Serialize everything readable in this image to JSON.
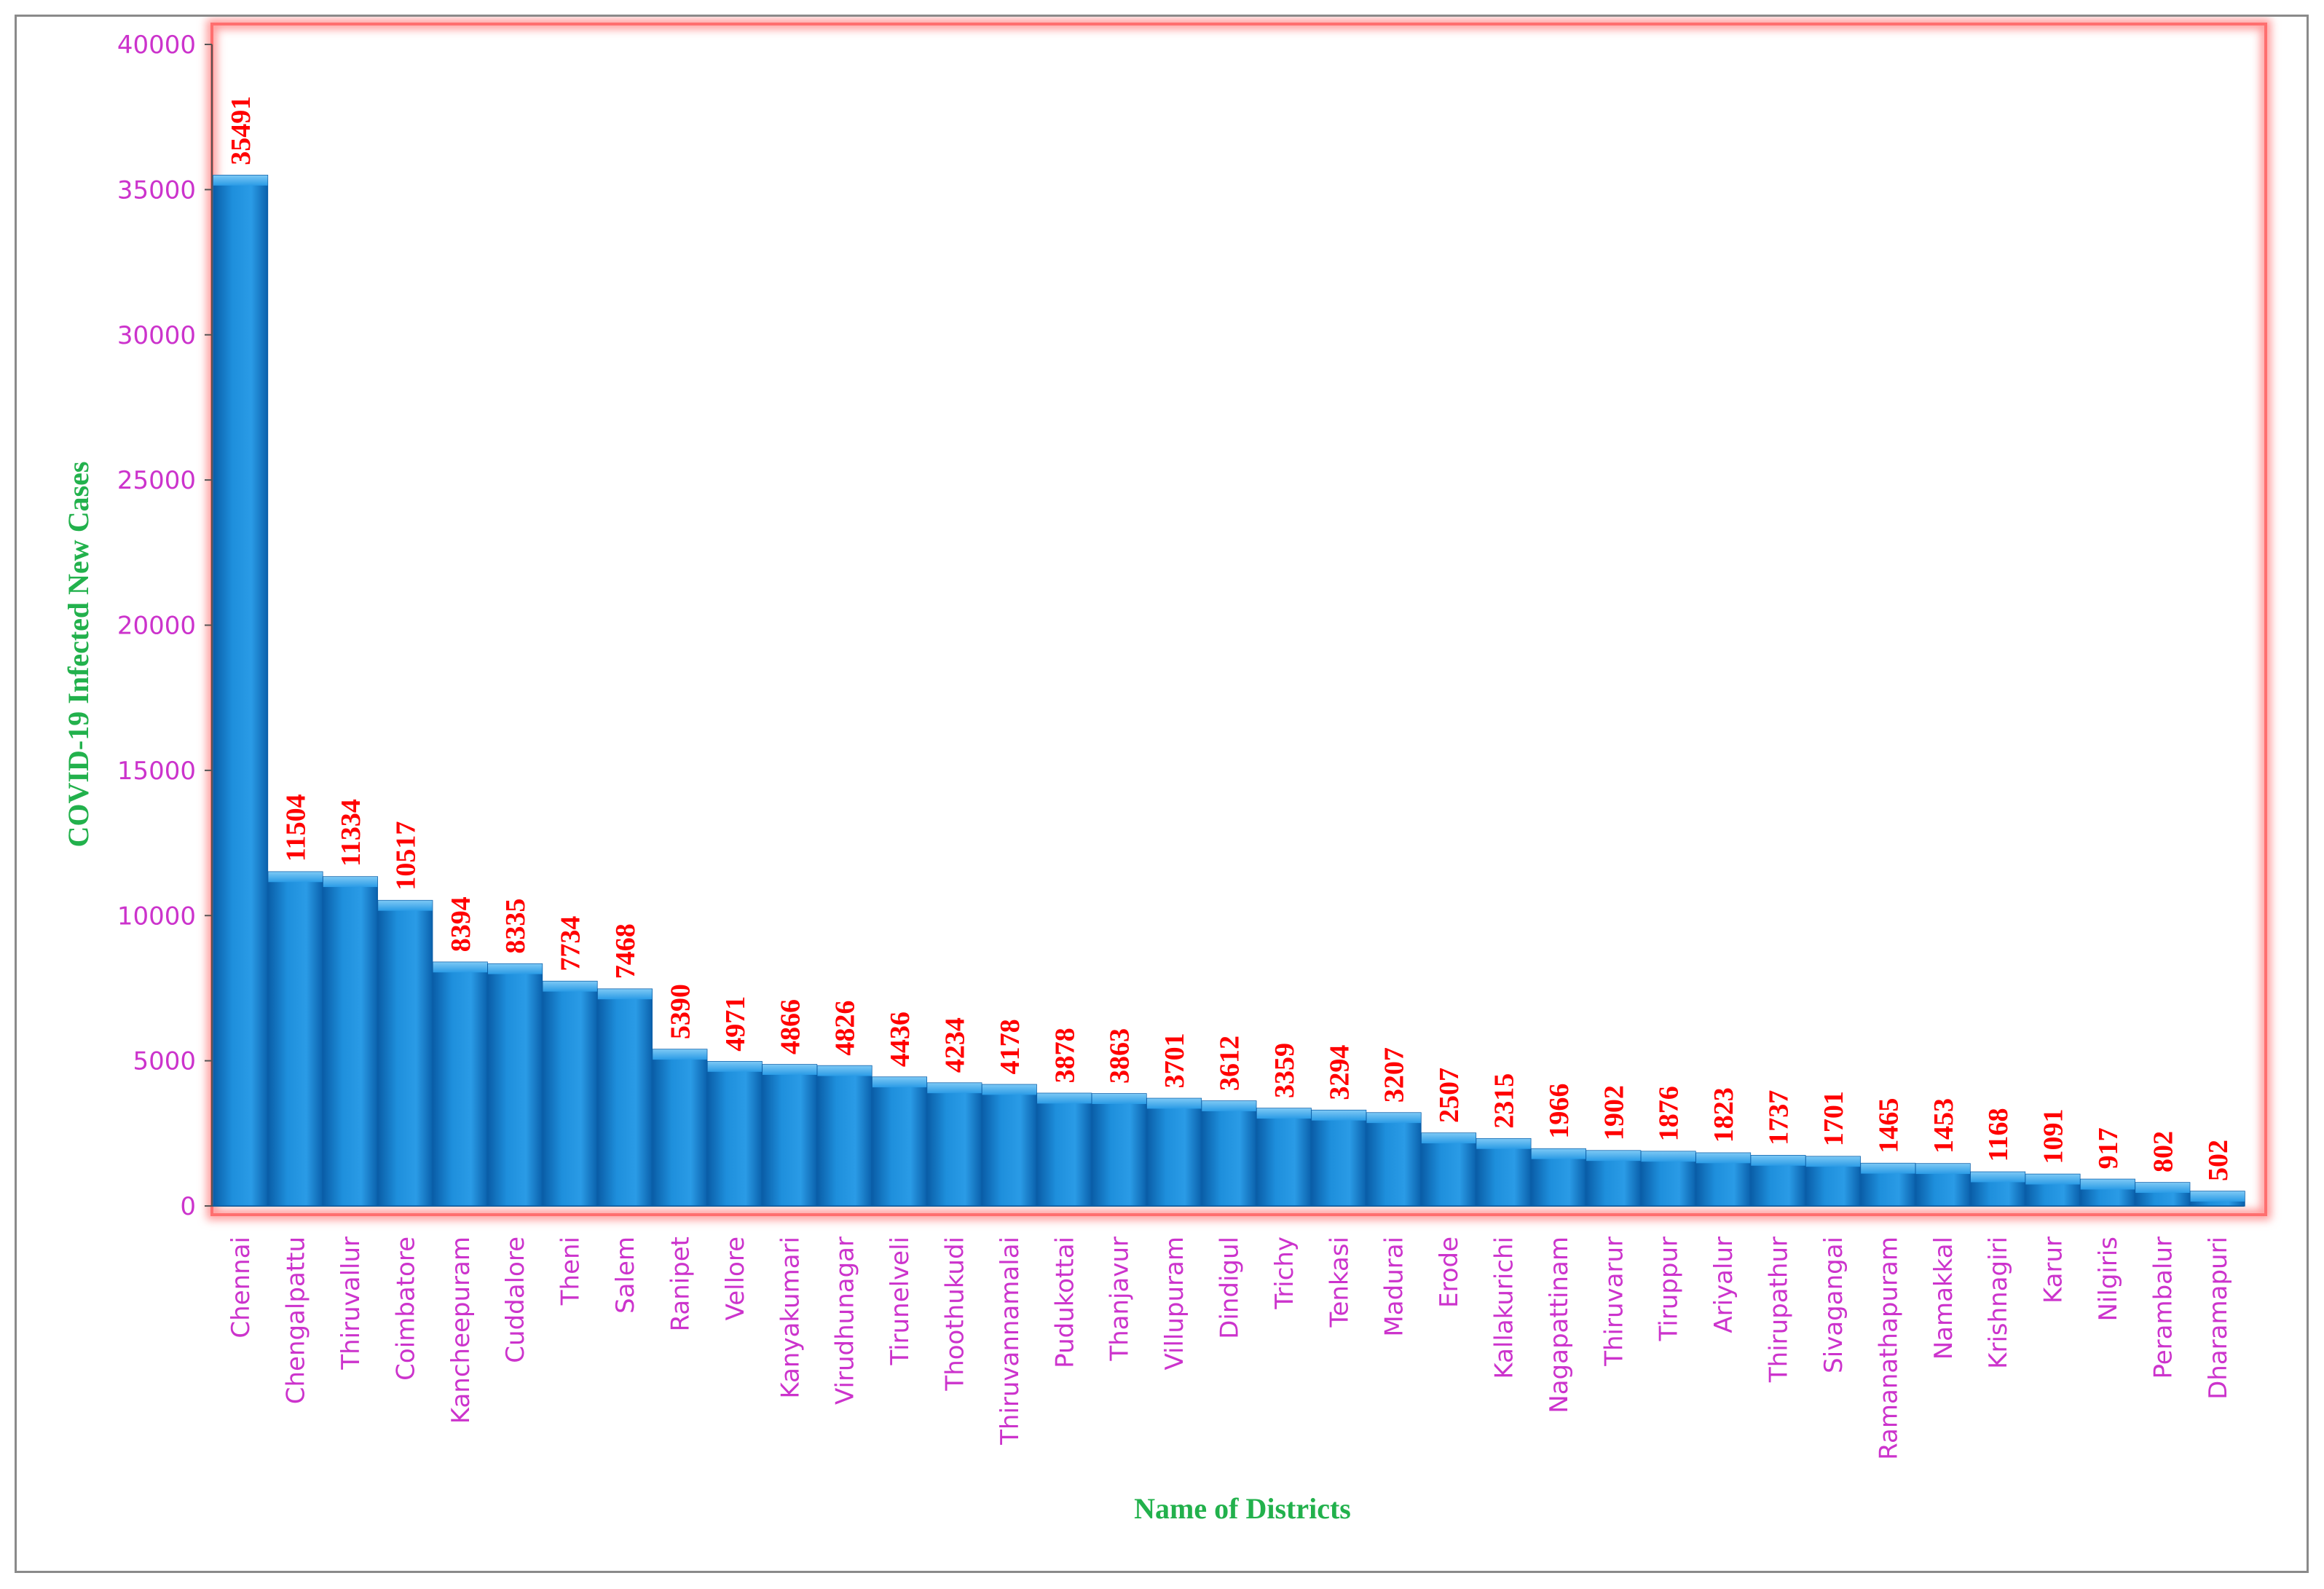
{
  "chart_data": {
    "type": "bar",
    "xlabel": "Name of Districts",
    "ylabel": "COVID-19  Infected New  Cases",
    "ylim": [
      0,
      40000
    ],
    "yticks": [
      "0",
      "5000",
      "10000",
      "15000",
      "20000",
      "25000",
      "30000",
      "35000",
      "40000"
    ],
    "grid": false,
    "legend": "none",
    "colors": {
      "bar": "#1e8fdc",
      "bar_dark": "#0a5ea8",
      "value_label": "#ff0000",
      "tick_label": "#cc33cc",
      "axis_title": "#22b14c",
      "plot_border": "#ff8080"
    },
    "categories": [
      "Chennai",
      "Chengalpattu",
      "Thiruvallur",
      "Coimbatore",
      "Kancheepuram",
      "Cuddalore",
      "Theni",
      "Salem",
      "Ranipet",
      "Vellore",
      "Kanyakumari",
      "Virudhunagar",
      "Tirunelveli",
      "Thoothukudi",
      "Thiruvannamalai",
      "Pudukottai",
      "Thanjavur",
      "Villupuram",
      "Dindigul",
      "Trichy",
      "Tenkasi",
      "Madurai",
      "Erode",
      "Kallakurichi",
      "Nagapattinam",
      "Thiruvarur",
      "Tiruppur",
      "Ariyalur",
      "Thirupathur",
      "Sivagangai",
      "Ramanathapuram",
      "Namakkal",
      "Krishnagiri",
      "Karur",
      "Nilgiris",
      "Perambalur",
      "Dharamapuri"
    ],
    "values": [
      35491,
      11504,
      11334,
      10517,
      8394,
      8335,
      7734,
      7468,
      5390,
      4971,
      4866,
      4826,
      4436,
      4234,
      4178,
      3878,
      3863,
      3701,
      3612,
      3359,
      3294,
      3207,
      2507,
      2315,
      1966,
      1902,
      1876,
      1823,
      1737,
      1701,
      1465,
      1453,
      1168,
      1091,
      917,
      802,
      502
    ]
  }
}
